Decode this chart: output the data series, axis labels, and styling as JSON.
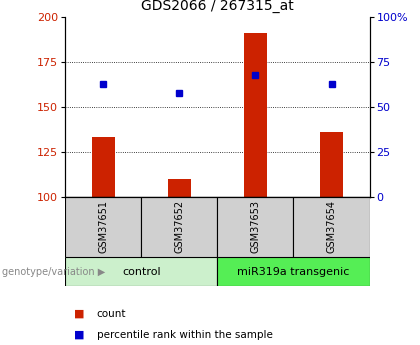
{
  "title": "GDS2066 / 267315_at",
  "samples": [
    "GSM37651",
    "GSM37652",
    "GSM37653",
    "GSM37654"
  ],
  "counts": [
    133,
    110,
    191,
    136
  ],
  "percentiles": [
    63,
    58,
    68,
    63
  ],
  "ylim_left": [
    100,
    200
  ],
  "ylim_right": [
    0,
    100
  ],
  "yticks_left": [
    100,
    125,
    150,
    175,
    200
  ],
  "yticks_right": [
    0,
    25,
    50,
    75,
    100
  ],
  "bar_color": "#cc2200",
  "square_color": "#0000cc",
  "genotype_label": "genotype/variation",
  "legend_count": "count",
  "legend_percentile": "percentile rank within the sample",
  "title_fontsize": 10,
  "tick_fontsize": 8,
  "sample_box_color": "#d0d0d0",
  "group_control_color": "#ccf0cc",
  "group_transgenic_color": "#55ee55",
  "bar_width": 0.3
}
